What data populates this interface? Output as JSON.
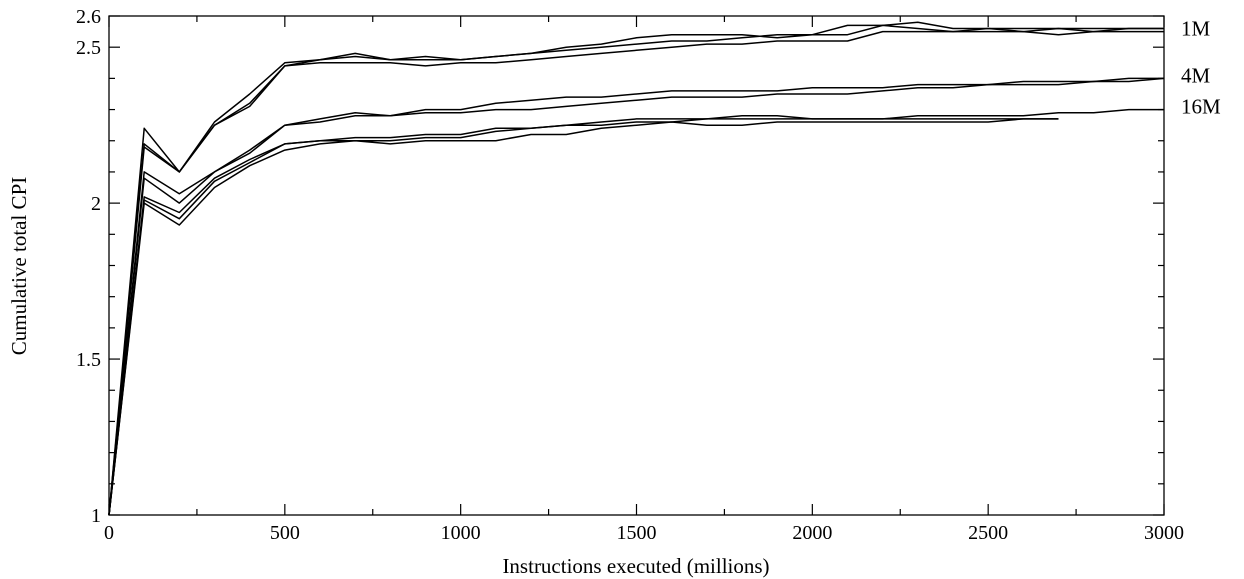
{
  "chart_data": {
    "type": "line",
    "xlabel": "Instructions executed (millions)",
    "ylabel": "Cumulative total CPI",
    "xlim": [
      0,
      3000
    ],
    "ylim": [
      1,
      2.6
    ],
    "x_ticks": [
      0,
      500,
      1000,
      1500,
      2000,
      2500,
      3000
    ],
    "x_minor_ticks": [
      250,
      750,
      1250,
      1750,
      2250,
      2750
    ],
    "y_ticks": [
      1,
      1.5,
      2,
      2.5,
      2.6
    ],
    "y_minor_ticks": [
      1.1,
      1.2,
      1.3,
      1.4,
      1.6,
      1.7,
      1.8,
      1.9,
      2.1,
      2.2,
      2.3,
      2.4
    ],
    "grid": false,
    "legend": "none",
    "annotations": [
      {
        "text": "1M",
        "series_group": "1M",
        "y": 2.56
      },
      {
        "text": "4M",
        "series_group": "4M",
        "y": 2.41
      },
      {
        "text": "16M",
        "series_group": "16M",
        "y": 2.31
      }
    ],
    "series": [
      {
        "group": "1M",
        "x": [
          0,
          100,
          200,
          300,
          400,
          500,
          600,
          700,
          800,
          900,
          1000,
          1100,
          1200,
          1300,
          1400,
          1500,
          1600,
          1700,
          1800,
          1900,
          2000,
          2100,
          2200,
          2300,
          2400,
          2500,
          2600,
          2700,
          2800,
          2900,
          3000
        ],
        "values": [
          1,
          2.24,
          2.1,
          2.26,
          2.35,
          2.45,
          2.46,
          2.48,
          2.46,
          2.47,
          2.46,
          2.47,
          2.48,
          2.5,
          2.51,
          2.53,
          2.54,
          2.54,
          2.54,
          2.53,
          2.54,
          2.57,
          2.57,
          2.56,
          2.55,
          2.56,
          2.55,
          2.56,
          2.55,
          2.56,
          2.56
        ]
      },
      {
        "group": "1M",
        "x": [
          0,
          100,
          200,
          300,
          400,
          500,
          600,
          700,
          800,
          900,
          1000,
          1100,
          1200,
          1300,
          1400,
          1500,
          1600,
          1700,
          1800,
          1900,
          2000,
          2100,
          2200,
          2300,
          2400,
          2500,
          2600,
          2700,
          2800,
          2900,
          3000
        ],
        "values": [
          1,
          2.19,
          2.1,
          2.25,
          2.32,
          2.44,
          2.46,
          2.47,
          2.46,
          2.46,
          2.46,
          2.47,
          2.48,
          2.49,
          2.5,
          2.51,
          2.52,
          2.52,
          2.53,
          2.54,
          2.54,
          2.54,
          2.57,
          2.58,
          2.56,
          2.56,
          2.56,
          2.56,
          2.56,
          2.56,
          2.56
        ]
      },
      {
        "group": "1M",
        "x": [
          0,
          100,
          200,
          300,
          400,
          500,
          600,
          700,
          800,
          900,
          1000,
          1100,
          1200,
          1300,
          1400,
          1500,
          1600,
          1700,
          1800,
          1900,
          2000,
          2100,
          2200,
          2300,
          2400,
          2500,
          2600,
          2700,
          2800,
          2900,
          3000
        ],
        "values": [
          1,
          2.18,
          2.1,
          2.25,
          2.31,
          2.44,
          2.45,
          2.45,
          2.45,
          2.44,
          2.45,
          2.45,
          2.46,
          2.47,
          2.48,
          2.49,
          2.5,
          2.51,
          2.51,
          2.52,
          2.52,
          2.52,
          2.55,
          2.55,
          2.55,
          2.55,
          2.55,
          2.54,
          2.55,
          2.55,
          2.55
        ]
      },
      {
        "group": "4M",
        "x": [
          0,
          100,
          200,
          300,
          400,
          500,
          600,
          700,
          800,
          900,
          1000,
          1100,
          1200,
          1300,
          1400,
          1500,
          1600,
          1700,
          1800,
          1900,
          2000,
          2100,
          2200,
          2300,
          2400,
          2500,
          2600,
          2700,
          2800,
          2900,
          3000
        ],
        "values": [
          1,
          2.1,
          2.03,
          2.1,
          2.17,
          2.25,
          2.27,
          2.29,
          2.28,
          2.3,
          2.3,
          2.32,
          2.33,
          2.34,
          2.34,
          2.35,
          2.36,
          2.36,
          2.36,
          2.36,
          2.37,
          2.37,
          2.37,
          2.38,
          2.38,
          2.38,
          2.39,
          2.39,
          2.39,
          2.4,
          2.4
        ]
      },
      {
        "group": "4M",
        "x": [
          0,
          100,
          200,
          300,
          400,
          500,
          600,
          700,
          800,
          900,
          1000,
          1100,
          1200,
          1300,
          1400,
          1500,
          1600,
          1700,
          1800,
          1900,
          2000,
          2100,
          2200,
          2300,
          2400,
          2500,
          2600,
          2700,
          2800,
          2900,
          3000
        ],
        "values": [
          1,
          2.08,
          2.0,
          2.1,
          2.16,
          2.25,
          2.26,
          2.28,
          2.28,
          2.29,
          2.29,
          2.3,
          2.3,
          2.31,
          2.32,
          2.33,
          2.34,
          2.34,
          2.34,
          2.35,
          2.35,
          2.35,
          2.36,
          2.37,
          2.37,
          2.38,
          2.38,
          2.38,
          2.39,
          2.39,
          2.4
        ]
      },
      {
        "group": "16M",
        "x": [
          0,
          100,
          200,
          300,
          400,
          500,
          600,
          700,
          800,
          900,
          1000,
          1100,
          1200,
          1300,
          1400,
          1500,
          1600,
          1700,
          1800,
          1900,
          2000,
          2100,
          2200,
          2300,
          2400,
          2500,
          2600,
          2700,
          2800,
          2900,
          3000
        ],
        "values": [
          1,
          2.02,
          1.97,
          2.08,
          2.14,
          2.19,
          2.2,
          2.21,
          2.21,
          2.22,
          2.22,
          2.24,
          2.24,
          2.25,
          2.25,
          2.26,
          2.26,
          2.27,
          2.27,
          2.27,
          2.27,
          2.27,
          2.27,
          2.28,
          2.28,
          2.28,
          2.28,
          2.29,
          2.29,
          2.3,
          2.3
        ]
      },
      {
        "group": "16M",
        "x": [
          0,
          100,
          200,
          300,
          400,
          500,
          600,
          700,
          800,
          900,
          1000,
          1100,
          1200,
          1300,
          1400,
          1500,
          1600,
          1700,
          1800,
          1900,
          2000,
          2100,
          2200,
          2300,
          2400,
          2500,
          2600,
          2700
        ],
        "values": [
          1,
          2.01,
          1.95,
          2.07,
          2.13,
          2.19,
          2.2,
          2.2,
          2.2,
          2.21,
          2.21,
          2.23,
          2.24,
          2.25,
          2.26,
          2.27,
          2.27,
          2.27,
          2.28,
          2.28,
          2.27,
          2.27,
          2.27,
          2.27,
          2.27,
          2.27,
          2.27,
          2.27
        ]
      },
      {
        "group": "16M",
        "x": [
          0,
          100,
          200,
          300,
          400,
          500,
          600,
          700,
          800,
          900,
          1000,
          1100,
          1200,
          1300,
          1400,
          1500,
          1600,
          1700,
          1800,
          1900,
          2000,
          2100,
          2200,
          2300,
          2400,
          2500,
          2600,
          2700
        ],
        "values": [
          1,
          2.0,
          1.93,
          2.05,
          2.12,
          2.17,
          2.19,
          2.2,
          2.19,
          2.2,
          2.2,
          2.2,
          2.22,
          2.22,
          2.24,
          2.25,
          2.26,
          2.25,
          2.25,
          2.26,
          2.26,
          2.26,
          2.26,
          2.26,
          2.26,
          2.26,
          2.27,
          2.27
        ]
      }
    ]
  }
}
